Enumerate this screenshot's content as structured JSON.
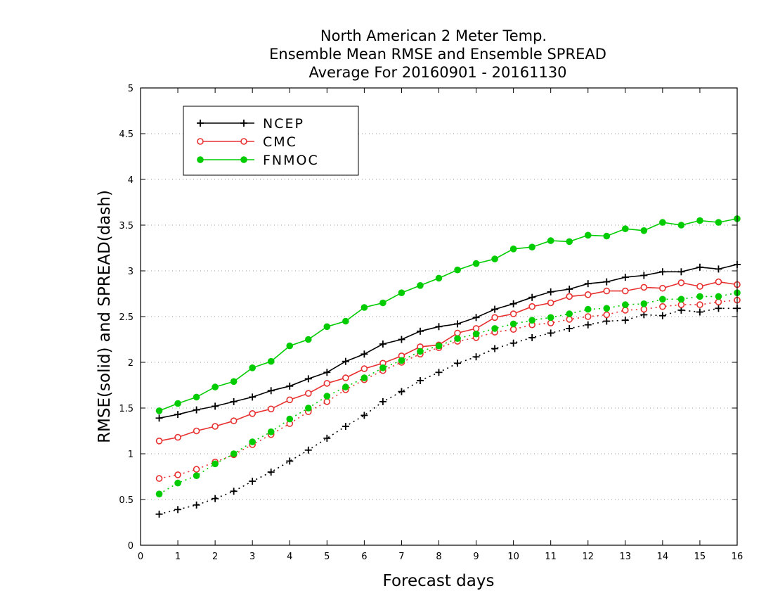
{
  "chart_data": {
    "type": "line",
    "title": [
      "North American 2 Meter Temp.",
      "Ensemble Mean RMSE and Ensemble SPREAD",
      "Average For 20160901 - 20161130"
    ],
    "xlabel": "Forecast days",
    "ylabel": "RMSE(solid) and SPREAD(dash)",
    "xlim": [
      0,
      16
    ],
    "ylim": [
      0,
      5
    ],
    "xticks": [
      "0",
      "1",
      "2",
      "3",
      "4",
      "5",
      "6",
      "7",
      "8",
      "9",
      "10",
      "11",
      "12",
      "13",
      "14",
      "15",
      "16"
    ],
    "yticks": [
      "0",
      "0.5",
      "1",
      "1.5",
      "2",
      "2.5",
      "3",
      "3.5",
      "4",
      "4.5",
      "5"
    ],
    "grid": "horizontal dotted",
    "legend_position": "top-left",
    "x": [
      0.5,
      1,
      1.5,
      2,
      2.5,
      3,
      3.5,
      4,
      4.5,
      5,
      5.5,
      6,
      6.5,
      7,
      7.5,
      8,
      8.5,
      9,
      9.5,
      10,
      10.5,
      11,
      11.5,
      12,
      12.5,
      13,
      13.5,
      14,
      14.5,
      15,
      15.5,
      16
    ],
    "series": [
      {
        "name": "NCEP",
        "color": "#000000",
        "marker": "plus",
        "rmse": [
          1.39,
          1.43,
          1.48,
          1.52,
          1.57,
          1.62,
          1.69,
          1.74,
          1.82,
          1.89,
          2.01,
          2.09,
          2.2,
          2.25,
          2.34,
          2.39,
          2.42,
          2.49,
          2.58,
          2.64,
          2.71,
          2.77,
          2.8,
          2.86,
          2.88,
          2.93,
          2.95,
          2.99,
          2.99,
          3.04,
          3.02,
          3.07
        ],
        "spread": [
          0.34,
          0.39,
          0.44,
          0.51,
          0.59,
          0.7,
          0.8,
          0.92,
          1.04,
          1.17,
          1.3,
          1.42,
          1.57,
          1.68,
          1.8,
          1.89,
          1.99,
          2.06,
          2.15,
          2.21,
          2.27,
          2.32,
          2.37,
          2.41,
          2.45,
          2.46,
          2.52,
          2.51,
          2.57,
          2.55,
          2.59,
          2.59
        ]
      },
      {
        "name": "CMC",
        "color": "#e83030",
        "marker": "open-circle",
        "rmse": [
          1.14,
          1.18,
          1.25,
          1.3,
          1.36,
          1.44,
          1.49,
          1.59,
          1.66,
          1.77,
          1.83,
          1.93,
          1.99,
          2.07,
          2.17,
          2.19,
          2.32,
          2.37,
          2.49,
          2.53,
          2.61,
          2.65,
          2.72,
          2.74,
          2.78,
          2.78,
          2.82,
          2.81,
          2.87,
          2.83,
          2.88,
          2.85
        ],
        "spread": [
          0.73,
          0.77,
          0.83,
          0.91,
          0.99,
          1.1,
          1.21,
          1.33,
          1.46,
          1.57,
          1.7,
          1.81,
          1.91,
          2.0,
          2.09,
          2.16,
          2.23,
          2.27,
          2.33,
          2.36,
          2.41,
          2.43,
          2.47,
          2.5,
          2.52,
          2.57,
          2.58,
          2.61,
          2.63,
          2.63,
          2.66,
          2.68
        ]
      },
      {
        "name": "FNMOC",
        "color": "#00cc00",
        "marker": "filled-circle",
        "rmse": [
          1.47,
          1.55,
          1.62,
          1.73,
          1.79,
          1.94,
          2.01,
          2.18,
          2.25,
          2.39,
          2.45,
          2.6,
          2.65,
          2.76,
          2.84,
          2.92,
          3.01,
          3.08,
          3.13,
          3.24,
          3.26,
          3.33,
          3.32,
          3.39,
          3.38,
          3.46,
          3.44,
          3.53,
          3.5,
          3.55,
          3.53,
          3.57
        ],
        "spread": [
          0.56,
          0.68,
          0.76,
          0.89,
          1.0,
          1.13,
          1.24,
          1.38,
          1.5,
          1.63,
          1.73,
          1.83,
          1.94,
          2.02,
          2.12,
          2.18,
          2.26,
          2.31,
          2.37,
          2.42,
          2.46,
          2.49,
          2.53,
          2.58,
          2.59,
          2.63,
          2.64,
          2.69,
          2.69,
          2.72,
          2.72,
          2.76
        ]
      }
    ]
  }
}
